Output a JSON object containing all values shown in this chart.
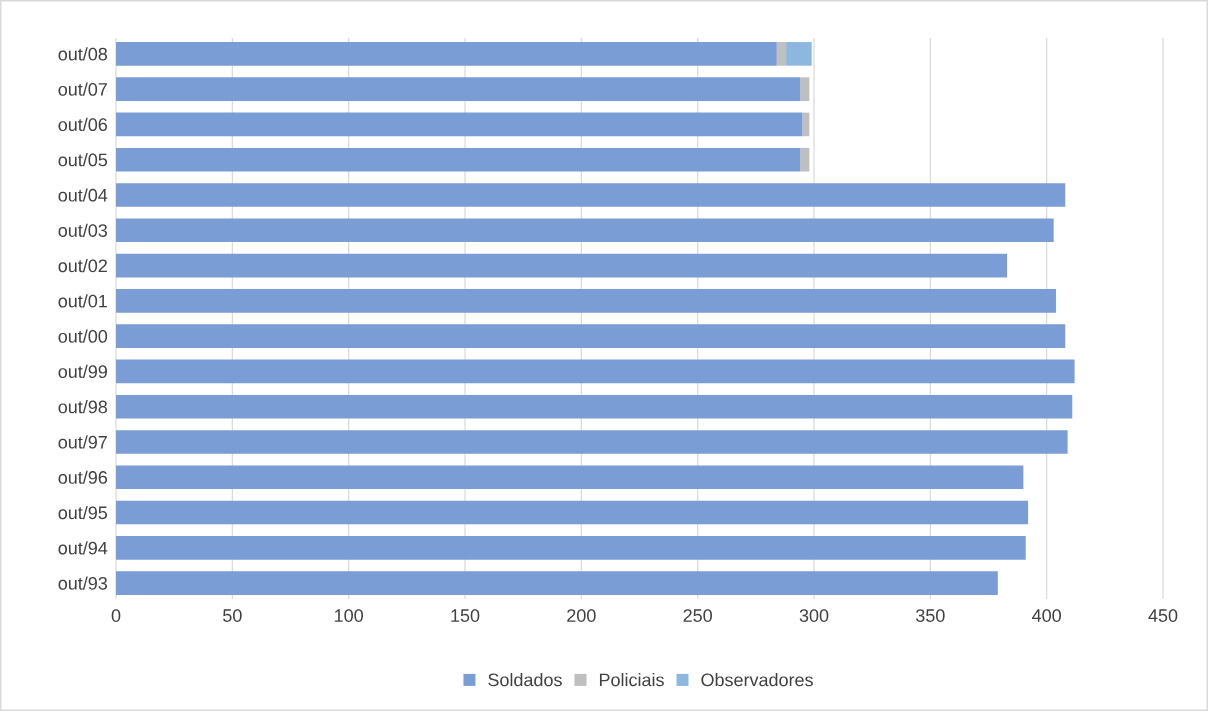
{
  "chart_data": {
    "type": "bar",
    "orientation": "horizontal",
    "stacked": true,
    "categories": [
      "out/08",
      "out/07",
      "out/06",
      "out/05",
      "out/04",
      "out/03",
      "out/02",
      "out/01",
      "out/00",
      "out/99",
      "out/98",
      "out/97",
      "out/96",
      "out/95",
      "out/94",
      "out/93"
    ],
    "series": [
      {
        "name": "Soldados",
        "color": "#7a9dd6",
        "values": [
          284,
          294,
          295,
          294,
          408,
          403,
          383,
          404,
          408,
          412,
          411,
          409,
          390,
          392,
          391,
          379
        ]
      },
      {
        "name": "Policiais",
        "color": "#bfbfbf",
        "values": [
          4,
          4,
          3,
          4,
          null,
          null,
          null,
          null,
          null,
          null,
          null,
          null,
          null,
          null,
          null,
          null
        ]
      },
      {
        "name": "Observadores",
        "color": "#8cb8e0",
        "values": [
          11,
          null,
          null,
          null,
          null,
          null,
          null,
          null,
          null,
          null,
          null,
          null,
          null,
          null,
          null,
          null
        ]
      }
    ],
    "xlim": [
      0,
      450
    ],
    "xticks": [
      0,
      50,
      100,
      150,
      200,
      250,
      300,
      350,
      400,
      450
    ],
    "grid": "x",
    "legend": "bottom"
  }
}
